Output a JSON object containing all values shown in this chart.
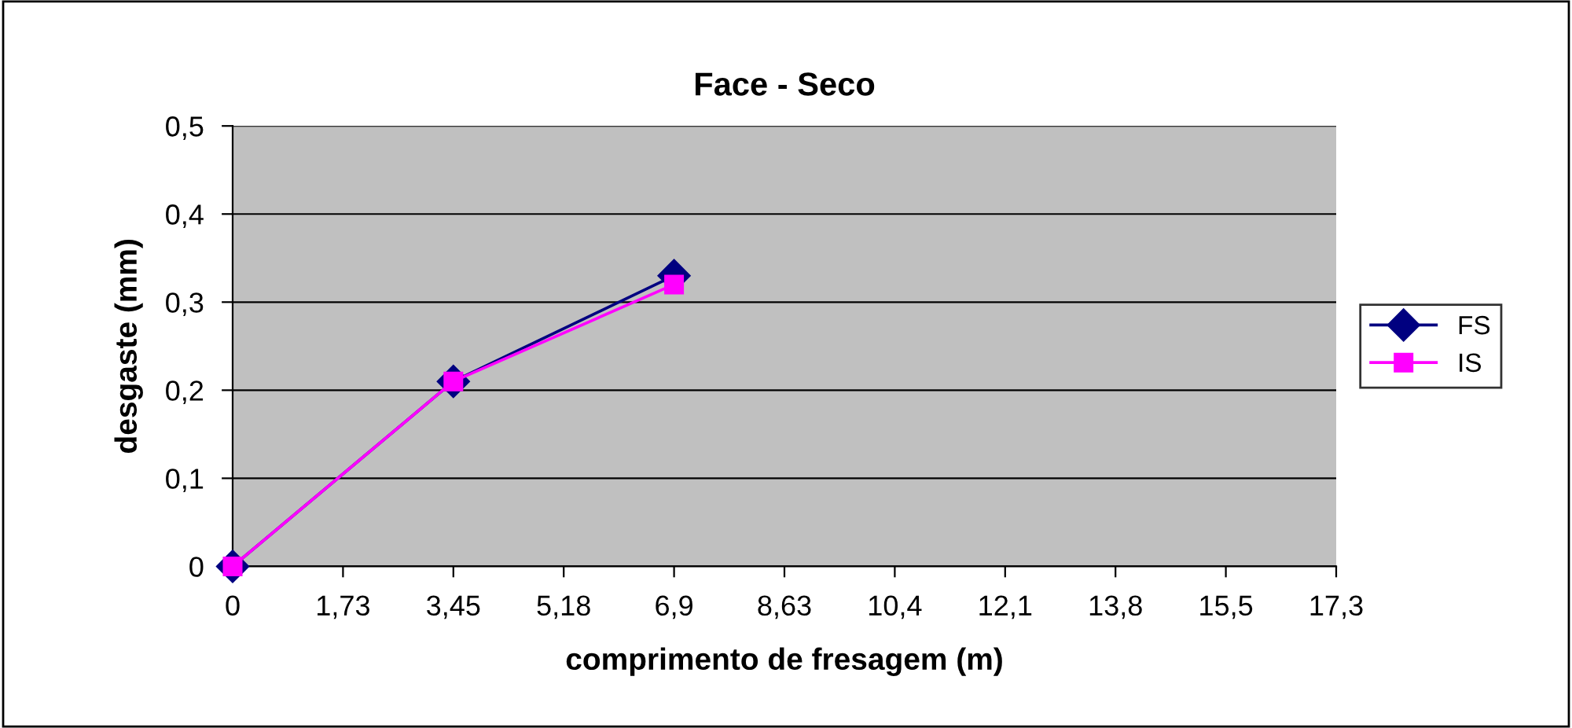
{
  "chart_data": {
    "type": "line",
    "title": "Face - Seco",
    "xlabel": "comprimento de fresagem (m)",
    "ylabel": "desgaste (mm)",
    "x": [
      0,
      3.45,
      6.9
    ],
    "series": [
      {
        "name": "FS",
        "color": "#000080",
        "values": [
          0,
          0.21,
          0.33
        ],
        "marker": "diamond"
      },
      {
        "name": "IS",
        "color": "#ff00ff",
        "values": [
          0,
          0.21,
          0.32
        ],
        "marker": "square"
      }
    ],
    "xlim": [
      0,
      17.25
    ],
    "xticks": [
      0,
      {
        "value": 1.725,
        "label": "1,73"
      },
      {
        "value": 3.45,
        "label": "3,45"
      },
      {
        "value": 5.175,
        "label": "5,18"
      },
      {
        "value": 6.9,
        "label": "6,9"
      },
      {
        "value": 8.625,
        "label": "8,63"
      },
      {
        "value": 10.35,
        "label": "10,4"
      },
      {
        "value": 12.075,
        "label": "12,1"
      },
      {
        "value": 13.8,
        "label": "13,8"
      },
      {
        "value": 15.525,
        "label": "15,5"
      },
      {
        "value": 17.25,
        "label": "17,3"
      }
    ],
    "ylim": [
      0,
      0.5
    ],
    "yticks": [
      0,
      {
        "value": 0.1,
        "label": "0,1"
      },
      {
        "value": 0.2,
        "label": "0,2"
      },
      {
        "value": 0.3,
        "label": "0,3"
      },
      {
        "value": 0.4,
        "label": "0,4"
      },
      {
        "value": 0.5,
        "label": "0,5"
      }
    ],
    "grid": "y",
    "legend": "right",
    "line_style": "solid"
  }
}
